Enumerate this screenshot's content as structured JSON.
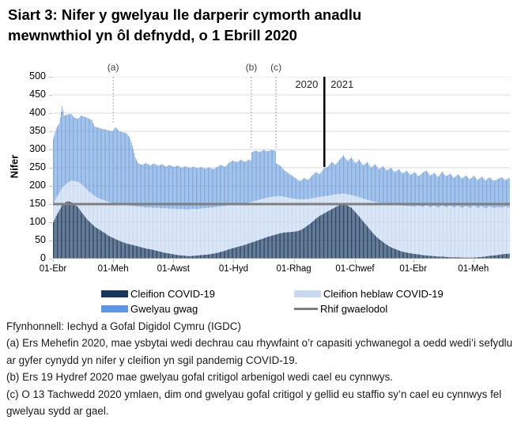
{
  "title": {
    "line1": "Siart 3: Nifer y gwelyau lle darperir cymorth anadlu",
    "line2": "mewnwthiol yn ôl defnydd, o 1 Ebrill 2020"
  },
  "chart": {
    "ylabel": "Nifer",
    "x_ticks": [
      {
        "label": "01-Ebr",
        "day": 0
      },
      {
        "label": "01-Meh",
        "day": 61
      },
      {
        "label": "01-Awst",
        "day": 122
      },
      {
        "label": "01-Hyd",
        "day": 183
      },
      {
        "label": "01-Rhag",
        "day": 244
      },
      {
        "label": "01-Chwef",
        "day": 306
      },
      {
        "label": "01-Ebr",
        "day": 365
      },
      {
        "label": "01-Meh",
        "day": 426
      }
    ],
    "annotations": {
      "lines": [
        {
          "label": "(a)",
          "day": 61,
          "line_to_value": 372
        },
        {
          "label": "(b)",
          "day": 201,
          "line_to_value": 303
        },
        {
          "label": "(c)",
          "day": 226,
          "line_to_value": 302
        }
      ],
      "divider_day": 275,
      "divider_line_to_value": 252,
      "year_left": "2020",
      "year_right": "2021"
    },
    "legend": [
      {
        "label": "Cleifion COVID-19",
        "swatch": "rect",
        "color_key": "covid"
      },
      {
        "label": "Cleifion heblaw COVID-19",
        "swatch": "rect",
        "color_key": "non_covid"
      },
      {
        "label": "Gwelyau gwag",
        "swatch": "rect",
        "color_key": "empty_legend"
      },
      {
        "label": "Rhif gwaelodol",
        "swatch": "line",
        "color_key": "baseline"
      }
    ],
    "colors": {
      "covid": "#17375E",
      "non_covid": "#C6D9F1",
      "empty_bar": "#74A3DF",
      "empty_legend": "#5D96E8",
      "baseline": "#7F7F7F",
      "grid": "#D9D9D9",
      "axis": "#BFBFBF",
      "dotted": "#A6A6A6",
      "divider": "#000000",
      "annotation_text": "#404040"
    }
  },
  "chart_data": {
    "type": "bar",
    "stacked": true,
    "start_date": "2020-04-01",
    "ylabel": "Nifer",
    "ylim": [
      0,
      500
    ],
    "ytick_step": 50,
    "series_names": [
      "Cleifion COVID-19",
      "Cleifion heblaw COVID-19",
      "Gwelyau gwag"
    ],
    "baseline": {
      "label": "Rhif gwaelodol",
      "value": 150
    },
    "sample_format": [
      "day_offset",
      "cleifion_covid19",
      "cleifion_heblaw_covid19",
      "gwelyau_gwag"
    ],
    "samples": [
      [
        0,
        100,
        48,
        182
      ],
      [
        3,
        118,
        50,
        190
      ],
      [
        6,
        132,
        48,
        192
      ],
      [
        9,
        148,
        48,
        224
      ],
      [
        11,
        152,
        48,
        193
      ],
      [
        14,
        158,
        50,
        188
      ],
      [
        18,
        156,
        58,
        184
      ],
      [
        21,
        150,
        64,
        174
      ],
      [
        25,
        142,
        69,
        173
      ],
      [
        28,
        130,
        76,
        187
      ],
      [
        32,
        116,
        80,
        194
      ],
      [
        35,
        106,
        81,
        199
      ],
      [
        39,
        96,
        83,
        202
      ],
      [
        42,
        88,
        84,
        191
      ],
      [
        46,
        81,
        85,
        194
      ],
      [
        49,
        76,
        87,
        194
      ],
      [
        53,
        69,
        90,
        196
      ],
      [
        56,
        63,
        93,
        196
      ],
      [
        60,
        58,
        94,
        198
      ],
      [
        63,
        54,
        96,
        212
      ],
      [
        67,
        49,
        100,
        201
      ],
      [
        70,
        46,
        102,
        200
      ],
      [
        74,
        42,
        105,
        198
      ],
      [
        77,
        40,
        106,
        189
      ],
      [
        80,
        38,
        107,
        167
      ],
      [
        83,
        36,
        108,
        134
      ],
      [
        86,
        34,
        109,
        119
      ],
      [
        90,
        31,
        111,
        116
      ],
      [
        94,
        28,
        112,
        123
      ],
      [
        98,
        26,
        115,
        115
      ],
      [
        102,
        24,
        115,
        123
      ],
      [
        106,
        21,
        119,
        115
      ],
      [
        110,
        18,
        120,
        122
      ],
      [
        114,
        16,
        123,
        114
      ],
      [
        118,
        14,
        123,
        121
      ],
      [
        122,
        12,
        126,
        114
      ],
      [
        126,
        10,
        126,
        120
      ],
      [
        130,
        9,
        128,
        113
      ],
      [
        134,
        8,
        127,
        119
      ],
      [
        138,
        7,
        129,
        113
      ],
      [
        142,
        8,
        129,
        116
      ],
      [
        146,
        9,
        127,
        112
      ],
      [
        150,
        10,
        128,
        114
      ],
      [
        154,
        11,
        128,
        108
      ],
      [
        158,
        12,
        128,
        111
      ],
      [
        162,
        14,
        127,
        105
      ],
      [
        166,
        16,
        126,
        110
      ],
      [
        170,
        19,
        125,
        114
      ],
      [
        174,
        22,
        123,
        107
      ],
      [
        178,
        26,
        121,
        117
      ],
      [
        182,
        29,
        119,
        122
      ],
      [
        186,
        32,
        118,
        115
      ],
      [
        190,
        35,
        116,
        121
      ],
      [
        194,
        38,
        114,
        114
      ],
      [
        198,
        42,
        112,
        118
      ],
      [
        200,
        44,
        111,
        115
      ],
      [
        201,
        45,
        111,
        136
      ],
      [
        205,
        48,
        111,
        138
      ],
      [
        209,
        52,
        110,
        131
      ],
      [
        213,
        56,
        109,
        134
      ],
      [
        217,
        60,
        108,
        127
      ],
      [
        221,
        63,
        107,
        129
      ],
      [
        225,
        66,
        105,
        125
      ],
      [
        226,
        67,
        104,
        91
      ],
      [
        230,
        70,
        102,
        83
      ],
      [
        234,
        72,
        98,
        73
      ],
      [
        238,
        73,
        95,
        67
      ],
      [
        242,
        74,
        92,
        62
      ],
      [
        246,
        75,
        89,
        56
      ],
      [
        250,
        78,
        85,
        50
      ],
      [
        254,
        84,
        79,
        59
      ],
      [
        258,
        92,
        72,
        52
      ],
      [
        262,
        100,
        66,
        62
      ],
      [
        266,
        110,
        58,
        70
      ],
      [
        270,
        118,
        52,
        62
      ],
      [
        274,
        124,
        47,
        77
      ],
      [
        278,
        130,
        43,
        79
      ],
      [
        282,
        136,
        39,
        91
      ],
      [
        286,
        142,
        35,
        81
      ],
      [
        290,
        147,
        31,
        94
      ],
      [
        294,
        150,
        29,
        105
      ],
      [
        298,
        146,
        31,
        91
      ],
      [
        302,
        140,
        35,
        103
      ],
      [
        306,
        128,
        44,
        90
      ],
      [
        310,
        116,
        53,
        103
      ],
      [
        314,
        102,
        63,
        91
      ],
      [
        318,
        90,
        72,
        104
      ],
      [
        322,
        76,
        83,
        91
      ],
      [
        326,
        64,
        92,
        104
      ],
      [
        330,
        54,
        100,
        92
      ],
      [
        334,
        46,
        106,
        102
      ],
      [
        338,
        38,
        112,
        92
      ],
      [
        342,
        32,
        117,
        101
      ],
      [
        346,
        27,
        121,
        90
      ],
      [
        350,
        23,
        124,
        99
      ],
      [
        354,
        19,
        127,
        88
      ],
      [
        358,
        17,
        128,
        97
      ],
      [
        362,
        15,
        129,
        86
      ],
      [
        366,
        13,
        130,
        95
      ],
      [
        370,
        12,
        134,
        80
      ],
      [
        374,
        10,
        132,
        94
      ],
      [
        378,
        9,
        138,
        96
      ],
      [
        382,
        8,
        133,
        87
      ],
      [
        386,
        7,
        139,
        90
      ],
      [
        390,
        6,
        134,
        84
      ],
      [
        394,
        6,
        141,
        93
      ],
      [
        398,
        5,
        136,
        85
      ],
      [
        402,
        4,
        142,
        88
      ],
      [
        406,
        4,
        136,
        82
      ],
      [
        410,
        4,
        142,
        86
      ],
      [
        414,
        3,
        136,
        81
      ],
      [
        418,
        3,
        142,
        84
      ],
      [
        422,
        3,
        136,
        79
      ],
      [
        426,
        3,
        143,
        82
      ],
      [
        430,
        4,
        135,
        77
      ],
      [
        434,
        5,
        140,
        81
      ],
      [
        438,
        6,
        132,
        77
      ],
      [
        442,
        8,
        136,
        80
      ],
      [
        446,
        9,
        130,
        75
      ],
      [
        450,
        10,
        132,
        76
      ],
      [
        454,
        12,
        128,
        84
      ],
      [
        458,
        13,
        130,
        73
      ],
      [
        462,
        14,
        126,
        82
      ]
    ]
  },
  "footnotes": [
    "Ffynhonnell: Iechyd a Gofal Digidol Cymru (IGDC)",
    "(a) Ers Mehefin 2020, mae ysbytai wedi dechrau cau rhywfaint o’r capasiti ychwanegol a oedd wedi’i sefydlu ar gyfer cynydd yn nifer y cleifion yn sgil pandemig COVID-19.",
    "(b) Ers 19 Hydref 2020 mae gwelyau gofal critigol arbenigol wedi cael eu cynnwys.",
    "(c) O 13 Tachwedd 2020 ymlaen, dim ond gwelyau gofal critigol y gellid eu staffio sy’n cael eu cynnwys fel gwelyau sydd ar gael."
  ]
}
